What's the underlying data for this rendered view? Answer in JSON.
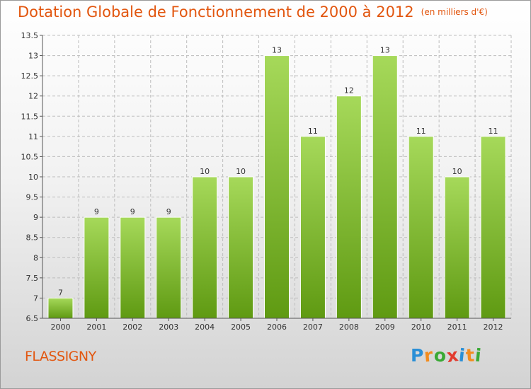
{
  "title": "Dotation Globale de Fonctionnement de 2000 à 2012",
  "unit": "(en milliers d'€)",
  "commune": "FLASSIGNY",
  "logo": {
    "text": "Proxiti",
    "letters": [
      "P",
      "r",
      "o",
      "x",
      "i",
      "t",
      "i"
    ],
    "colors": [
      "#2a8fd6",
      "#f28c1e",
      "#3aa935",
      "#e23b2e",
      "#2a8fd6",
      "#f28c1e",
      "#3aa935"
    ]
  },
  "colors": {
    "title": "#e2560f",
    "bar_top": "#a6d95a",
    "bar_bottom": "#5f9a12",
    "grid": "#bdbdbd"
  },
  "chart_data": {
    "type": "bar",
    "title": "Dotation Globale de Fonctionnement de 2000 à 2012",
    "categories": [
      "2000",
      "2001",
      "2002",
      "2003",
      "2004",
      "2005",
      "2006",
      "2007",
      "2008",
      "2009",
      "2010",
      "2011",
      "2012"
    ],
    "values": [
      7,
      9,
      9,
      9,
      10,
      10,
      13,
      11,
      12,
      13,
      11,
      10,
      11
    ],
    "data_labels": [
      "7",
      "9",
      "9",
      "9",
      "10",
      "10",
      "13",
      "11",
      "12",
      "13",
      "11",
      "10",
      "11"
    ],
    "ylim": [
      6.5,
      13.5
    ],
    "yticks": [
      6.5,
      7,
      7.5,
      8,
      8.5,
      9,
      9.5,
      10,
      10.5,
      11,
      11.5,
      12,
      12.5,
      13,
      13.5
    ],
    "ytick_labels": [
      "6.5",
      "7",
      "7.5",
      "8",
      "8.5",
      "9",
      "9.5",
      "10",
      "10.5",
      "11",
      "11.5",
      "12",
      "12.5",
      "13",
      "13.5"
    ],
    "grid": true,
    "legend": "none"
  }
}
